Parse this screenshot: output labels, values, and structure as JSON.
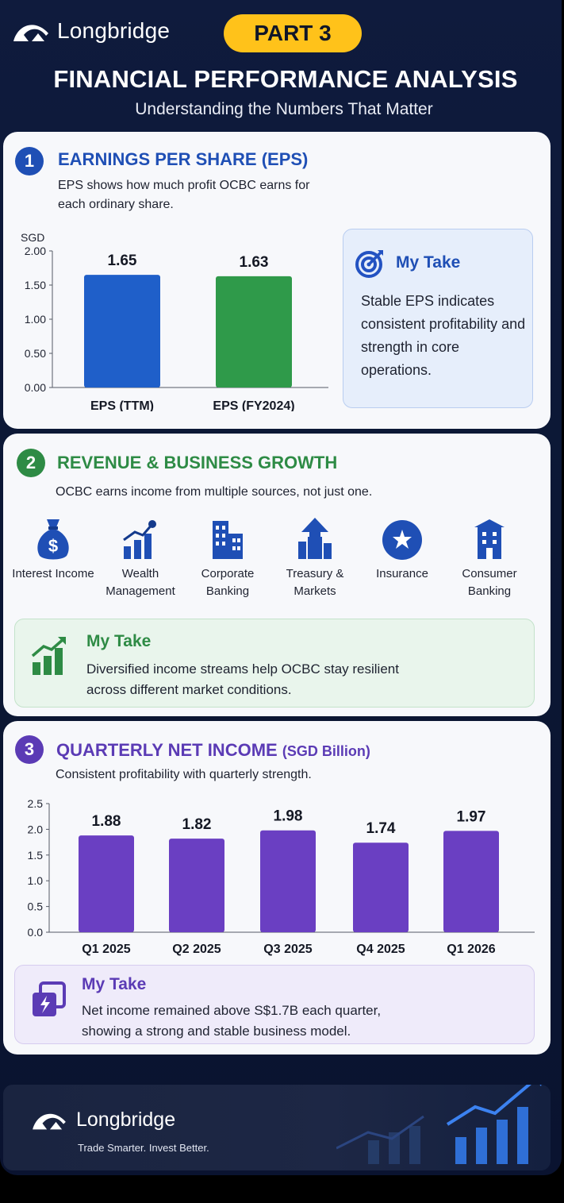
{
  "header": {
    "brand": "Longbridge",
    "part": "PART 3",
    "title": "FINANCIAL PERFORMANCE ANALYSIS",
    "subtitle": "Understanding the Numbers That Matter"
  },
  "sections": [
    {
      "number": "1",
      "title": "EARNINGS PER SHARE (EPS)",
      "description": "EPS shows how much profit OCBC earns for each ordinary share.",
      "take": {
        "title": "My Take",
        "text": "Stable EPS indicates consistent profitability and strength in core operations."
      }
    },
    {
      "number": "2",
      "title": "REVENUE & BUSINESS GROWTH",
      "description": "OCBC earns income from multiple sources, not just one.",
      "items": [
        {
          "label": "Interest Income",
          "icon": "money-bag-icon"
        },
        {
          "label": "Wealth Management",
          "icon": "growth-chart-icon"
        },
        {
          "label": "Corporate Banking",
          "icon": "office-building-icon"
        },
        {
          "label": "Treasury & Markets",
          "icon": "arrow-up-city-icon"
        },
        {
          "label": "Insurance",
          "icon": "shield-badge-icon"
        },
        {
          "label": "Consumer Banking",
          "icon": "tower-building-icon"
        }
      ],
      "take": {
        "title": "My Take",
        "text": "Diversified income streams help OCBC stay resilient across different market conditions."
      }
    },
    {
      "number": "3",
      "title": "QUARTERLY NET INCOME",
      "title_unit": "(SGD Billion)",
      "description": "Consistent profitability with quarterly strength.",
      "take": {
        "title": "My Take",
        "text": "Net income remained above S$1.7B each quarter, showing a strong and stable business model."
      }
    }
  ],
  "chart_data": [
    {
      "type": "bar",
      "ylabel": "SGD",
      "categories": [
        "EPS (TTM)",
        "EPS (FY2024)"
      ],
      "values": [
        1.65,
        1.63
      ],
      "value_labels": [
        "1.65",
        "1.63"
      ],
      "ylim": [
        0,
        2.0
      ],
      "yticks": [
        "0.00",
        "0.50",
        "1.00",
        "1.50",
        "2.00"
      ],
      "bar_colors": [
        "#1f5fc9",
        "#2f9a4a"
      ],
      "grid": false
    },
    {
      "type": "bar",
      "categories": [
        "Q1 2025",
        "Q2 2025",
        "Q3 2025",
        "Q4 2025",
        "Q1 2026"
      ],
      "values": [
        1.88,
        1.82,
        1.98,
        1.74,
        1.97
      ],
      "value_labels": [
        "1.88",
        "1.82",
        "1.98",
        "1.74",
        "1.97"
      ],
      "ylim": [
        0,
        2.5
      ],
      "yticks": [
        "0.0",
        "0.5",
        "1.0",
        "1.5",
        "2.0",
        "2.5"
      ],
      "bar_colors": [
        "#6a3fc2"
      ],
      "grid": false
    }
  ],
  "footer": {
    "brand": "Longbridge",
    "tagline": "Trade Smarter. Invest Better."
  },
  "colors": {
    "blue": "#1f4fb5",
    "green": "#2e8b45",
    "purple": "#5b3bb5",
    "gold": "#ffc21a",
    "navy": "#0f1b3d"
  }
}
